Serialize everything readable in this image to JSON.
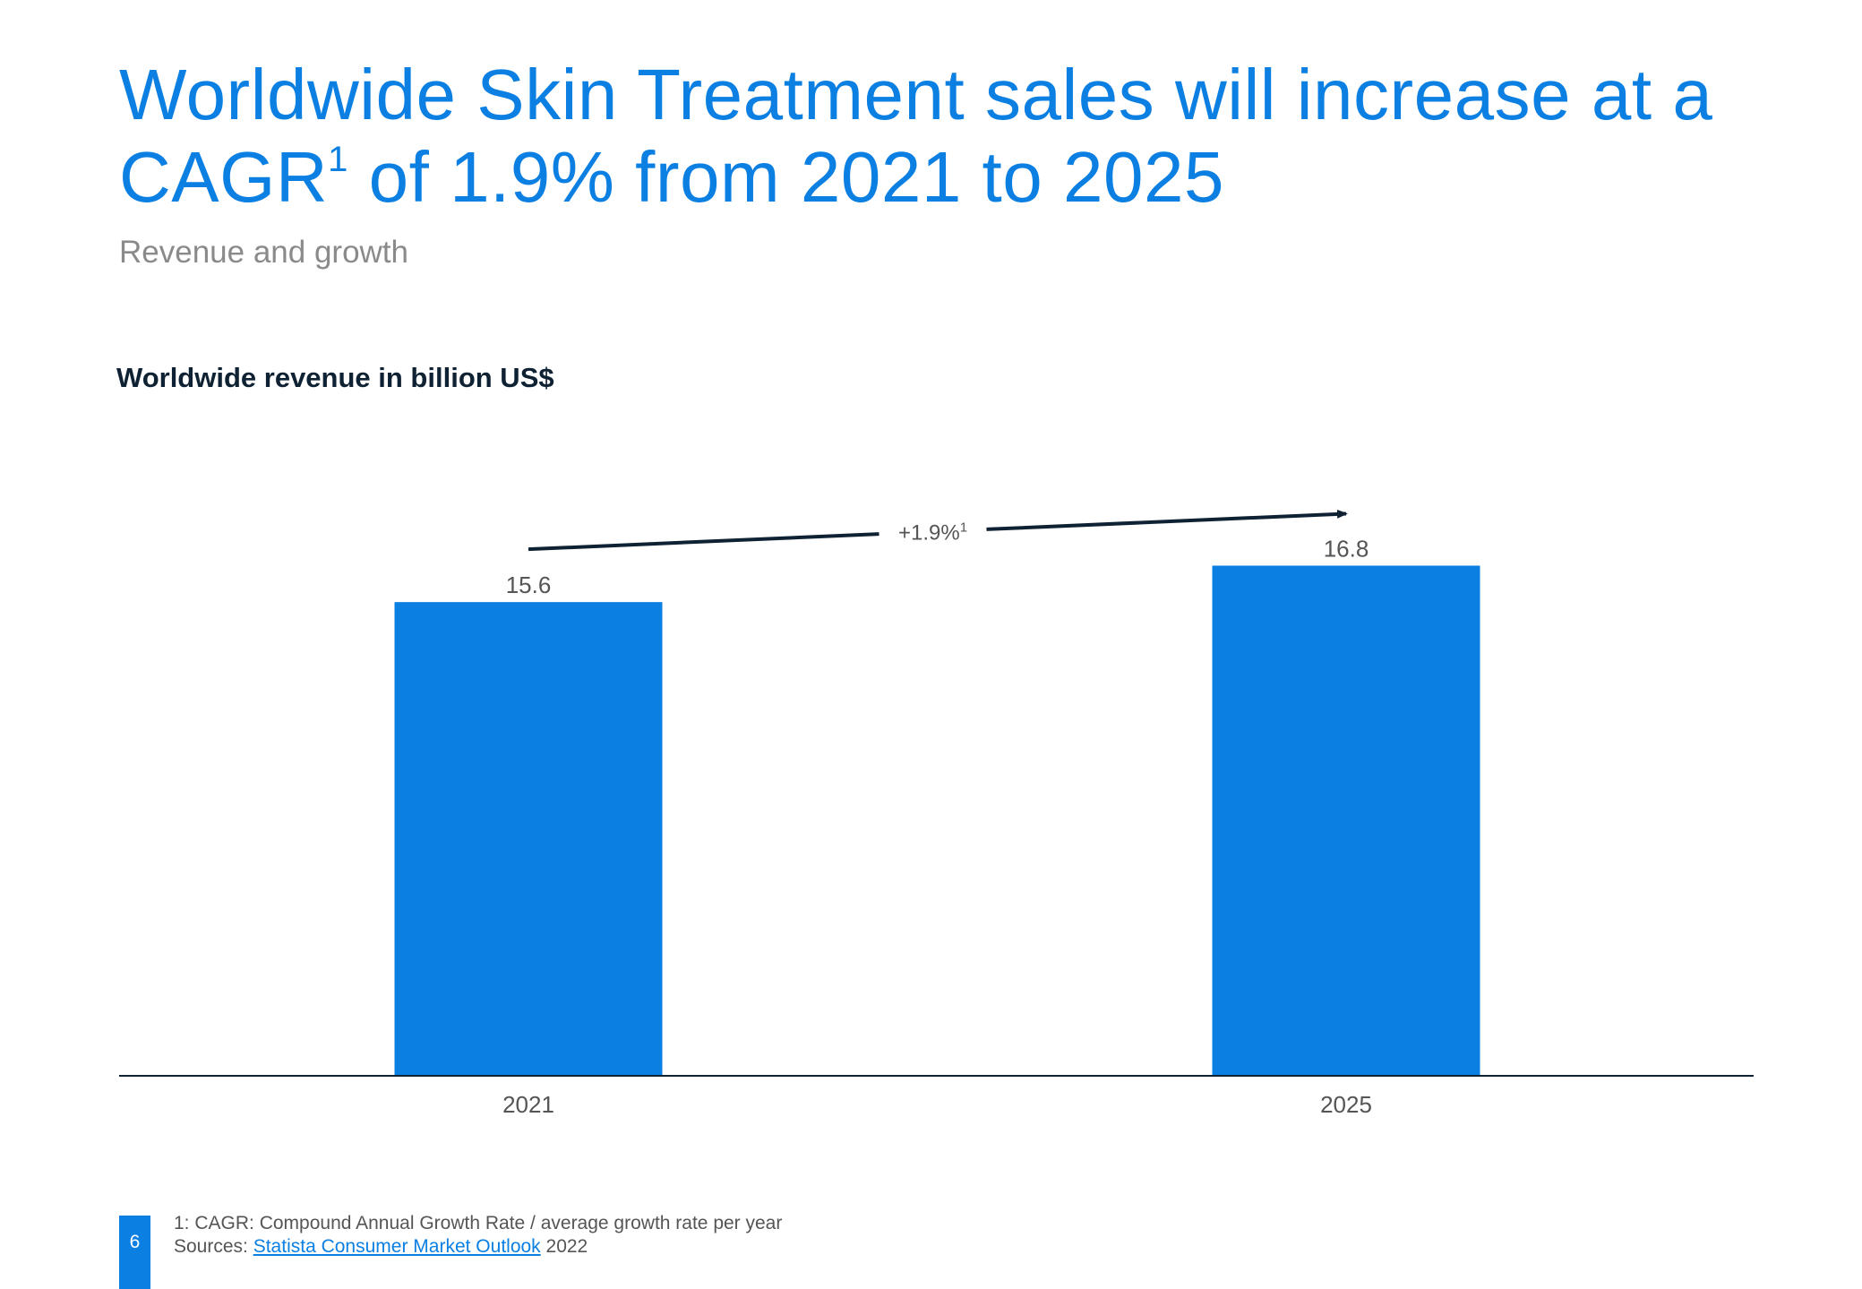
{
  "title": {
    "line1": "Worldwide Skin Treatment sales will increase at a",
    "line2_prefix": "CAGR",
    "line2_sup": "1",
    "line2_suffix": " of 1.9% from 2021 to 2025"
  },
  "subtitle": "Revenue and growth",
  "chart_heading": "Worldwide revenue in billion US$",
  "colors": {
    "accent": "#0b7fe2",
    "dark": "#0f2233",
    "label": "#555555"
  },
  "chart_data": {
    "type": "bar",
    "title": "Worldwide revenue in billion US$",
    "categories": [
      "2021",
      "2025"
    ],
    "values": [
      15.6,
      16.8
    ],
    "data_labels": [
      "15.6",
      "16.8"
    ],
    "xlabel": "",
    "ylabel": "",
    "ylim": [
      0,
      16.8
    ],
    "grid": false,
    "annotation": {
      "text": "+1.9%",
      "superscript": "1",
      "type": "growth-arrow",
      "from": "2021",
      "to": "2025"
    }
  },
  "footnotes": {
    "note": "1: CAGR: Compound Annual Growth Rate / average growth rate per year",
    "sources_prefix": "Sources: ",
    "sources_link": "Statista Consumer Market Outlook",
    "sources_suffix": " 2022"
  },
  "page_number": "6"
}
